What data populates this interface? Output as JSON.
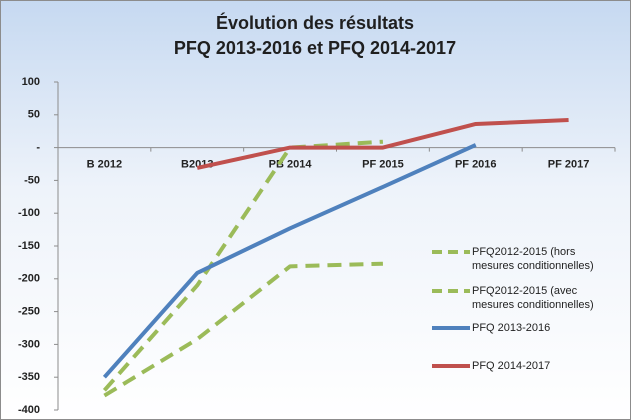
{
  "chart_data": {
    "type": "line",
    "title": "Évolution des résultats",
    "subtitle": "PFQ 2013-2016 et PFQ 2014-2017",
    "categories": [
      "B 2012",
      "B2013",
      "PB 2014",
      "PF 2015",
      "PF 2016",
      "PF 2017"
    ],
    "series": [
      {
        "name": "PFQ2012-2015 (hors mesures conditionnelles)",
        "color": "#9bbb59",
        "dashed": true,
        "values": [
          -378,
          -292,
          -181,
          -177,
          null,
          null
        ]
      },
      {
        "name": "PFQ2012-2015 (avec mesures conditionnelles)",
        "color": "#9bbb59",
        "dashed": true,
        "values": [
          -370,
          -210,
          0,
          9,
          null,
          null
        ]
      },
      {
        "name": "PFQ 2013-2016",
        "color": "#4f81bd",
        "dashed": false,
        "values": [
          -350,
          -191,
          -123,
          -60,
          4,
          null
        ]
      },
      {
        "name": "PFQ 2014-2017",
        "color": "#c0504d",
        "dashed": false,
        "values": [
          null,
          -31,
          0,
          0,
          36,
          42
        ]
      }
    ],
    "ylim": [
      -400,
      100
    ],
    "yticks": [
      -400,
      -350,
      -300,
      -250,
      -200,
      -150,
      -100,
      -50,
      {
        "value": 0,
        "label": "-"
      },
      50,
      100
    ],
    "legend": "right"
  }
}
